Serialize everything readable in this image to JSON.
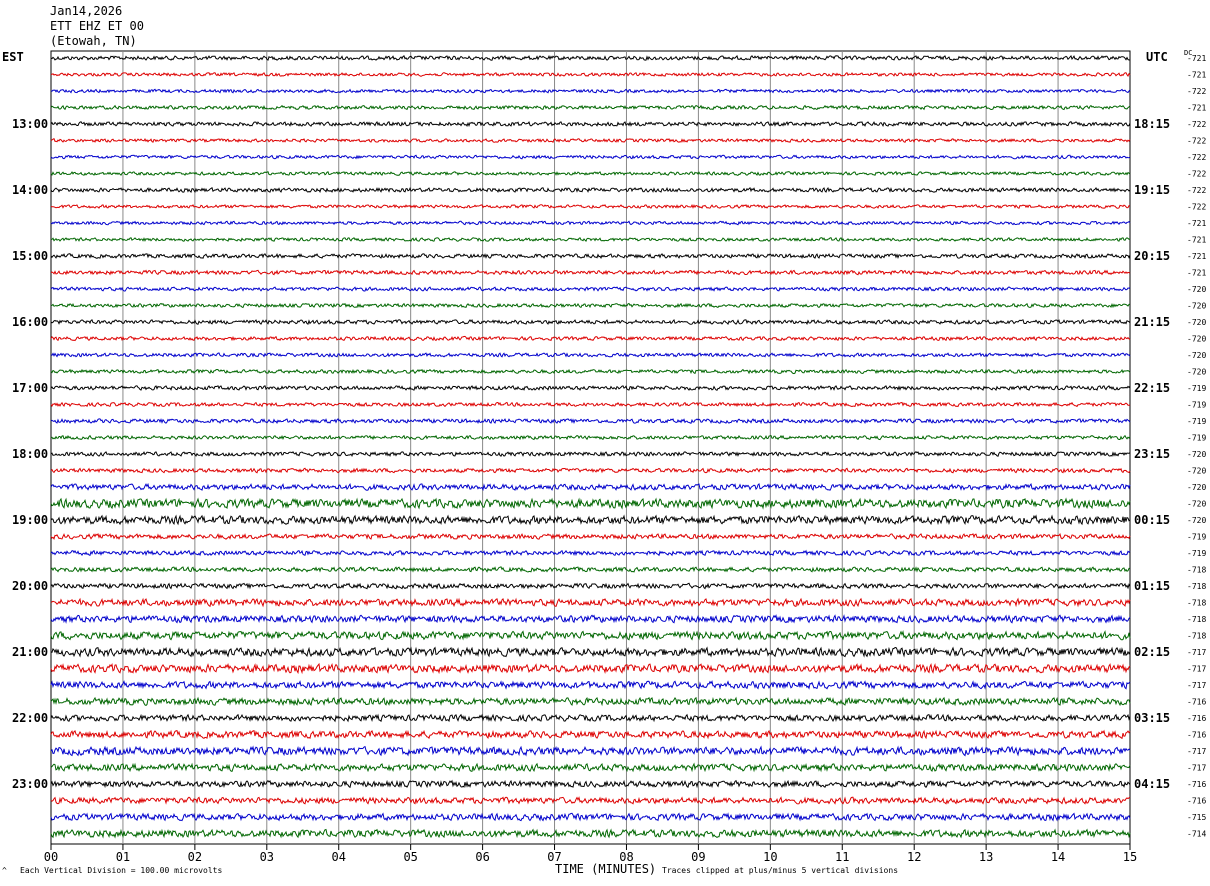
{
  "header": {
    "date": "Jan14,2026",
    "station": "ETT EHZ ET 00",
    "location": "(Etowah, TN)"
  },
  "left_zone": "EST",
  "right_zone": "UTC",
  "dc_label": "DC",
  "footer": {
    "scale": "Each Vertical Division =  100.00 microvolts",
    "clip": "Traces clipped at plus/minus 5 vertical divisions",
    "scale_mark": "^"
  },
  "colors": {
    "trace_cycle": [
      "#000000",
      "#dd0000",
      "#0000cc",
      "#006600"
    ],
    "grid": "#888888"
  },
  "chart_data": {
    "type": "line",
    "title": "",
    "xlabel": "TIME (MINUTES)",
    "ylabel": "",
    "xlim": [
      0,
      15
    ],
    "x_ticks": [
      "00",
      "01",
      "02",
      "03",
      "04",
      "05",
      "06",
      "07",
      "08",
      "09",
      "10",
      "11",
      "12",
      "13",
      "14",
      "15"
    ],
    "left_hour_labels": [
      {
        "row": 4,
        "label": "13:00"
      },
      {
        "row": 8,
        "label": "14:00"
      },
      {
        "row": 12,
        "label": "15:00"
      },
      {
        "row": 16,
        "label": "16:00"
      },
      {
        "row": 20,
        "label": "17:00"
      },
      {
        "row": 24,
        "label": "18:00"
      },
      {
        "row": 28,
        "label": "19:00"
      },
      {
        "row": 32,
        "label": "20:00"
      },
      {
        "row": 36,
        "label": "21:00"
      },
      {
        "row": 40,
        "label": "22:00"
      },
      {
        "row": 44,
        "label": "23:00"
      }
    ],
    "right_hour_labels": [
      {
        "row": 4,
        "label": "18:15"
      },
      {
        "row": 8,
        "label": "19:15"
      },
      {
        "row": 12,
        "label": "20:15"
      },
      {
        "row": 16,
        "label": "21:15"
      },
      {
        "row": 20,
        "label": "22:15"
      },
      {
        "row": 24,
        "label": "23:15"
      },
      {
        "row": 28,
        "label": "00:15"
      },
      {
        "row": 32,
        "label": "01:15"
      },
      {
        "row": 36,
        "label": "02:15"
      },
      {
        "row": 40,
        "label": "03:15"
      },
      {
        "row": 44,
        "label": "04:15"
      }
    ],
    "dc_offsets": [
      "-721",
      "-721",
      "-722",
      "-721",
      "-722",
      "-722",
      "-722",
      "-722",
      "-722",
      "-722",
      "-721",
      "-721",
      "-721",
      "-721",
      "-720",
      "-720",
      "-720",
      "-720",
      "-720",
      "-720",
      "-719",
      "-719",
      "-719",
      "-719",
      "-720",
      "-720",
      "-720",
      "-720",
      "-720",
      "-719",
      "-719",
      "-718",
      "-718",
      "-718",
      "-718",
      "-718",
      "-717",
      "-717",
      "-717",
      "-716",
      "-716",
      "-716",
      "-717",
      "-717",
      "-716",
      "-716",
      "-715",
      "-714"
    ],
    "amplitude": [
      1,
      0.8,
      0.8,
      0.9,
      1,
      0.8,
      0.8,
      0.8,
      1,
      0.8,
      0.8,
      0.8,
      1,
      1,
      0.9,
      0.9,
      1,
      0.9,
      0.9,
      0.9,
      1,
      0.9,
      1,
      0.9,
      1,
      1,
      1.4,
      2.2,
      2,
      1.2,
      1.1,
      1.1,
      1.2,
      1.7,
      1.7,
      1.9,
      2,
      2,
      1.7,
      1.7,
      1.5,
      1.7,
      2,
      1.7,
      1.5,
      1.5,
      1.6,
      1.8
    ]
  }
}
